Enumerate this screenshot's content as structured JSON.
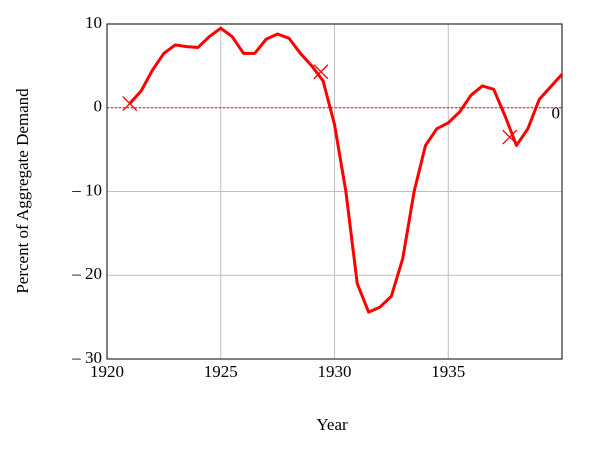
{
  "chart_data": {
    "type": "line",
    "x_label": "Year",
    "y_label": "Percent of Aggregate Demand",
    "xlim": [
      1920,
      1940
    ],
    "xticks": [
      1920,
      1925,
      1930,
      1935
    ],
    "ylim": [
      -30,
      10
    ],
    "yticks": [
      {
        "value": -30,
        "label": "– 30"
      },
      {
        "value": -20,
        "label": "– 20"
      },
      {
        "value": -10,
        "label": "– 10"
      },
      0,
      10
    ],
    "grid": true,
    "series": [
      {
        "color": "#ff0000",
        "x": [
          1921,
          1921.5,
          1922,
          1922.5,
          1923,
          1923.5,
          1924,
          1924.5,
          1925,
          1925.5,
          1926,
          1926.5,
          1927,
          1927.5,
          1928,
          1928.5,
          1929,
          1929.5,
          1930,
          1930.5,
          1931,
          1931.5,
          1932,
          1932.5,
          1933,
          1933.5,
          1934,
          1934.5,
          1935,
          1935.5,
          1936,
          1936.5,
          1937,
          1937.5,
          1938,
          1938.5,
          1939,
          1939.5,
          1940
        ],
        "values": [
          0.5,
          2,
          4.5,
          6.5,
          7.5,
          7.3,
          7.2,
          8.5,
          9.5,
          8.5,
          6.5,
          6.5,
          8.2,
          8.8,
          8.3,
          6.5,
          5,
          3.2,
          -2,
          -10,
          -21,
          -24.4,
          -23.8,
          -22.5,
          -18,
          -10,
          -4.5,
          -2.5,
          -1.8,
          -0.5,
          1.5,
          2.6,
          2.2,
          -1,
          -4.5,
          -2.5,
          1,
          2.5,
          4
        ]
      }
    ],
    "markers": {
      "color": "#ff0000",
      "x": [
        1921,
        1929.4,
        1937.7
      ],
      "values": [
        0.5,
        4.3,
        -3.5
      ]
    },
    "reference_line": {
      "value": 0,
      "label": "0",
      "color": "#ff0000"
    }
  }
}
